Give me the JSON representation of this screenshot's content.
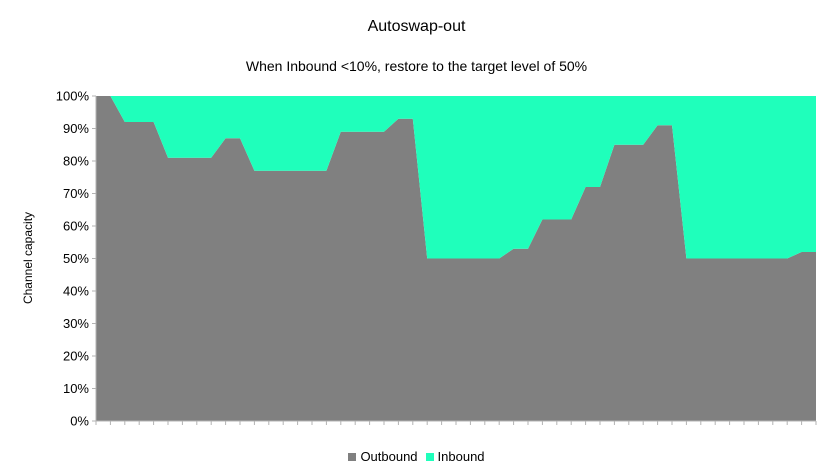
{
  "chart_data": {
    "type": "area",
    "stacked": true,
    "title": "Autoswap-out",
    "subtitle": "When Inbound <10%, restore to the target level of 50%",
    "xlabel": "",
    "ylabel": "Channel capacity",
    "ylim": [
      0,
      100
    ],
    "yticks": [
      "0%",
      "10%",
      "20%",
      "30%",
      "40%",
      "50%",
      "60%",
      "70%",
      "80%",
      "90%",
      "100%"
    ],
    "grid": false,
    "legend": "bottom",
    "series": [
      {
        "name": "Outbound",
        "color": "#808080",
        "values": [
          100,
          100,
          92,
          92,
          92,
          81,
          81,
          81,
          81,
          87,
          87,
          77,
          77,
          77,
          77,
          77,
          77,
          89,
          89,
          89,
          89,
          93,
          93,
          50,
          50,
          50,
          50,
          50,
          50,
          53,
          53,
          62,
          62,
          62,
          72,
          72,
          85,
          85,
          85,
          91,
          91,
          50,
          50,
          50,
          50,
          50,
          50,
          50,
          50,
          52,
          52
        ]
      },
      {
        "name": "Inbound",
        "color": "#1fffbb",
        "values": [
          0,
          0,
          8,
          8,
          8,
          19,
          19,
          19,
          19,
          13,
          13,
          23,
          23,
          23,
          23,
          23,
          23,
          11,
          11,
          11,
          11,
          7,
          7,
          50,
          50,
          50,
          50,
          50,
          50,
          47,
          47,
          38,
          38,
          38,
          28,
          28,
          15,
          15,
          15,
          9,
          9,
          50,
          50,
          50,
          50,
          50,
          50,
          50,
          50,
          48,
          48
        ]
      }
    ]
  }
}
